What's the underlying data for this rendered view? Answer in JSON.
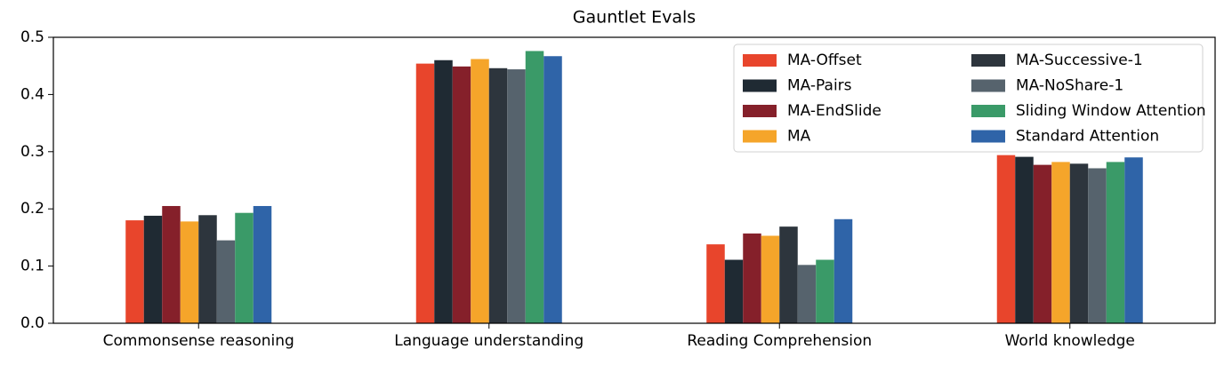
{
  "chart_data": {
    "type": "bar",
    "title": "Gauntlet Evals",
    "categories": [
      "Commonsense reasoning",
      "Language understanding",
      "Reading Comprehension",
      "World knowledge"
    ],
    "series": [
      {
        "name": "MA-Offset",
        "color": "#e8452c",
        "values": [
          0.18,
          0.454,
          0.138,
          0.294
        ]
      },
      {
        "name": "MA-Pairs",
        "color": "#1f2a33",
        "values": [
          0.188,
          0.46,
          0.111,
          0.291
        ]
      },
      {
        "name": "MA-EndSlide",
        "color": "#85202a",
        "values": [
          0.205,
          0.449,
          0.157,
          0.277
        ]
      },
      {
        "name": "MA",
        "color": "#f5a52a",
        "values": [
          0.178,
          0.462,
          0.153,
          0.282
        ]
      },
      {
        "name": "MA-Successive-1",
        "color": "#2d353d",
        "values": [
          0.189,
          0.446,
          0.169,
          0.279
        ]
      },
      {
        "name": "MA-NoShare-1",
        "color": "#56636d",
        "values": [
          0.145,
          0.444,
          0.102,
          0.271
        ]
      },
      {
        "name": "Sliding Window Attention",
        "color": "#3a9a68",
        "values": [
          0.193,
          0.476,
          0.111,
          0.282
        ]
      },
      {
        "name": "Standard Attention",
        "color": "#2f64a8",
        "values": [
          0.205,
          0.467,
          0.182,
          0.29
        ]
      }
    ],
    "ylim": [
      0,
      0.5
    ],
    "yticks": [
      {
        "value": 0,
        "label": "0.0"
      },
      0.1,
      0.2,
      0.3,
      0.4,
      0.5
    ],
    "legend": "upper right"
  }
}
